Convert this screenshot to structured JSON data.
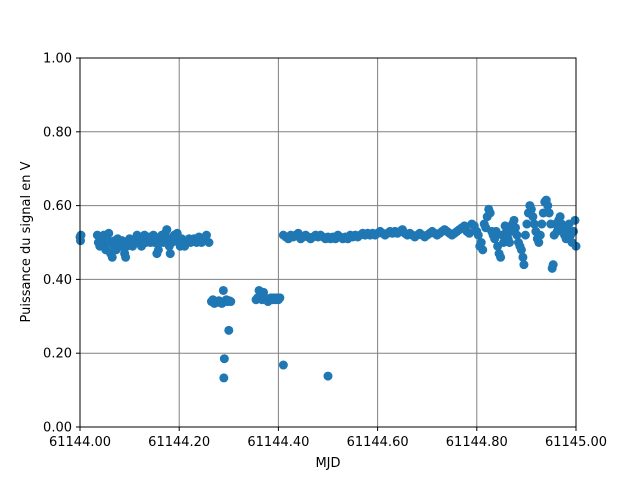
{
  "chart_data": {
    "type": "scatter",
    "title": "",
    "xlabel": "MJD",
    "ylabel": "Puissance du signal en V",
    "xlim": [
      61144.0,
      61145.0
    ],
    "ylim": [
      0.0,
      1.0
    ],
    "grid": true,
    "legend": "none",
    "x_ticks": [
      61144.0,
      61144.2,
      61144.4,
      61144.6,
      61144.8,
      61145.0
    ],
    "x_tick_labels": [
      "61144.00",
      "61144.20",
      "61144.40",
      "61144.60",
      "61144.80",
      "61145.00"
    ],
    "y_ticks": [
      0.0,
      0.2,
      0.4,
      0.6,
      0.8,
      1.0
    ],
    "y_tick_labels": [
      "0.00",
      "0.20",
      "0.40",
      "0.60",
      "0.80",
      "1.00"
    ],
    "colors": {
      "marker": "#1f77b4",
      "grid": "#808080",
      "axis": "#000000"
    },
    "series": [
      {
        "name": "",
        "points": [
          [
            61144.0,
            0.515
          ],
          [
            61144.001,
            0.505
          ],
          [
            61144.002,
            0.52
          ],
          [
            61144.035,
            0.52
          ],
          [
            61144.037,
            0.5
          ],
          [
            61144.04,
            0.49
          ],
          [
            61144.042,
            0.51
          ],
          [
            61144.045,
            0.5
          ],
          [
            61144.048,
            0.52
          ],
          [
            61144.05,
            0.495
          ],
          [
            61144.052,
            0.48
          ],
          [
            61144.055,
            0.51
          ],
          [
            61144.058,
            0.525
          ],
          [
            61144.06,
            0.5
          ],
          [
            61144.062,
            0.47
          ],
          [
            61144.065,
            0.46
          ],
          [
            61144.068,
            0.49
          ],
          [
            61144.07,
            0.505
          ],
          [
            61144.073,
            0.48
          ],
          [
            61144.076,
            0.51
          ],
          [
            61144.079,
            0.5
          ],
          [
            61144.082,
            0.49
          ],
          [
            61144.085,
            0.505
          ],
          [
            61144.088,
            0.5
          ],
          [
            61144.09,
            0.47
          ],
          [
            61144.092,
            0.46
          ],
          [
            61144.095,
            0.49
          ],
          [
            61144.098,
            0.5
          ],
          [
            61144.1,
            0.51
          ],
          [
            61144.103,
            0.495
          ],
          [
            61144.106,
            0.49
          ],
          [
            61144.109,
            0.505
          ],
          [
            61144.112,
            0.51
          ],
          [
            61144.115,
            0.52
          ],
          [
            61144.118,
            0.5
          ],
          [
            61144.121,
            0.515
          ],
          [
            61144.124,
            0.49
          ],
          [
            61144.127,
            0.51
          ],
          [
            61144.13,
            0.52
          ],
          [
            61144.133,
            0.5
          ],
          [
            61144.136,
            0.51
          ],
          [
            61144.139,
            0.515
          ],
          [
            61144.142,
            0.5
          ],
          [
            61144.145,
            0.505
          ],
          [
            61144.148,
            0.52
          ],
          [
            61144.15,
            0.5
          ],
          [
            61144.152,
            0.51
          ],
          [
            61144.155,
            0.47
          ],
          [
            61144.158,
            0.48
          ],
          [
            61144.16,
            0.5
          ],
          [
            61144.162,
            0.515
          ],
          [
            61144.165,
            0.52
          ],
          [
            61144.168,
            0.5
          ],
          [
            61144.17,
            0.51
          ],
          [
            61144.172,
            0.525
          ],
          [
            61144.175,
            0.535
          ],
          [
            61144.178,
            0.51
          ],
          [
            61144.18,
            0.49
          ],
          [
            61144.182,
            0.47
          ],
          [
            61144.185,
            0.5
          ],
          [
            61144.188,
            0.51
          ],
          [
            61144.19,
            0.52
          ],
          [
            61144.193,
            0.515
          ],
          [
            61144.196,
            0.525
          ],
          [
            61144.199,
            0.5
          ],
          [
            61144.202,
            0.49
          ],
          [
            61144.205,
            0.51
          ],
          [
            61144.208,
            0.5
          ],
          [
            61144.211,
            0.49
          ],
          [
            61144.214,
            0.5
          ],
          [
            61144.217,
            0.505
          ],
          [
            61144.22,
            0.51
          ],
          [
            61144.223,
            0.5
          ],
          [
            61144.226,
            0.505
          ],
          [
            61144.23,
            0.51
          ],
          [
            61144.235,
            0.5
          ],
          [
            61144.24,
            0.515
          ],
          [
            61144.245,
            0.5
          ],
          [
            61144.25,
            0.51
          ],
          [
            61144.255,
            0.52
          ],
          [
            61144.26,
            0.5
          ],
          [
            61144.265,
            0.34
          ],
          [
            61144.268,
            0.345
          ],
          [
            61144.271,
            0.335
          ],
          [
            61144.274,
            0.34
          ],
          [
            61144.277,
            0.338
          ],
          [
            61144.28,
            0.342
          ],
          [
            61144.283,
            0.34
          ],
          [
            61144.286,
            0.335
          ],
          [
            61144.289,
            0.37
          ],
          [
            61144.292,
            0.34
          ],
          [
            61144.295,
            0.345
          ],
          [
            61144.298,
            0.34
          ],
          [
            61144.301,
            0.342
          ],
          [
            61144.304,
            0.34
          ],
          [
            61144.291,
            0.185
          ],
          [
            61144.29,
            0.133
          ],
          [
            61144.3,
            0.262
          ],
          [
            61144.355,
            0.345
          ],
          [
            61144.358,
            0.35
          ],
          [
            61144.361,
            0.37
          ],
          [
            61144.364,
            0.36
          ],
          [
            61144.367,
            0.345
          ],
          [
            61144.37,
            0.365
          ],
          [
            61144.373,
            0.35
          ],
          [
            61144.376,
            0.345
          ],
          [
            61144.379,
            0.34
          ],
          [
            61144.382,
            0.345
          ],
          [
            61144.385,
            0.35
          ],
          [
            61144.388,
            0.345
          ],
          [
            61144.391,
            0.35
          ],
          [
            61144.394,
            0.345
          ],
          [
            61144.397,
            0.35
          ],
          [
            61144.4,
            0.345
          ],
          [
            61144.403,
            0.35
          ],
          [
            61144.41,
            0.168
          ],
          [
            61144.41,
            0.52
          ],
          [
            61144.415,
            0.515
          ],
          [
            61144.42,
            0.51
          ],
          [
            61144.425,
            0.52
          ],
          [
            61144.43,
            0.515
          ],
          [
            61144.435,
            0.52
          ],
          [
            61144.44,
            0.525
          ],
          [
            61144.445,
            0.51
          ],
          [
            61144.45,
            0.515
          ],
          [
            61144.455,
            0.52
          ],
          [
            61144.46,
            0.515
          ],
          [
            61144.465,
            0.51
          ],
          [
            61144.47,
            0.515
          ],
          [
            61144.475,
            0.52
          ],
          [
            61144.48,
            0.515
          ],
          [
            61144.485,
            0.52
          ],
          [
            61144.49,
            0.515
          ],
          [
            61144.495,
            0.51
          ],
          [
            61144.5,
            0.515
          ],
          [
            61144.505,
            0.51
          ],
          [
            61144.51,
            0.515
          ],
          [
            61144.515,
            0.51
          ],
          [
            61144.52,
            0.52
          ],
          [
            61144.525,
            0.515
          ],
          [
            61144.53,
            0.51
          ],
          [
            61144.535,
            0.515
          ],
          [
            61144.54,
            0.51
          ],
          [
            61144.545,
            0.52
          ],
          [
            61144.55,
            0.515
          ],
          [
            61144.555,
            0.52
          ],
          [
            61144.56,
            0.515
          ],
          [
            61144.565,
            0.52
          ],
          [
            61144.57,
            0.525
          ],
          [
            61144.575,
            0.52
          ],
          [
            61144.58,
            0.525
          ],
          [
            61144.585,
            0.52
          ],
          [
            61144.59,
            0.525
          ],
          [
            61144.595,
            0.52
          ],
          [
            61144.6,
            0.525
          ],
          [
            61144.605,
            0.53
          ],
          [
            61144.61,
            0.525
          ],
          [
            61144.615,
            0.52
          ],
          [
            61144.62,
            0.525
          ],
          [
            61144.625,
            0.53
          ],
          [
            61144.63,
            0.525
          ],
          [
            61144.635,
            0.53
          ],
          [
            61144.64,
            0.525
          ],
          [
            61144.645,
            0.53
          ],
          [
            61144.65,
            0.535
          ],
          [
            61144.655,
            0.525
          ],
          [
            61144.66,
            0.52
          ],
          [
            61144.665,
            0.525
          ],
          [
            61144.67,
            0.52
          ],
          [
            61144.675,
            0.515
          ],
          [
            61144.68,
            0.52
          ],
          [
            61144.685,
            0.525
          ],
          [
            61144.69,
            0.52
          ],
          [
            61144.695,
            0.515
          ],
          [
            61144.7,
            0.52
          ],
          [
            61144.705,
            0.525
          ],
          [
            61144.71,
            0.53
          ],
          [
            61144.715,
            0.525
          ],
          [
            61144.72,
            0.52
          ],
          [
            61144.725,
            0.525
          ],
          [
            61144.73,
            0.53
          ],
          [
            61144.735,
            0.535
          ],
          [
            61144.74,
            0.53
          ],
          [
            61144.745,
            0.525
          ],
          [
            61144.75,
            0.52
          ],
          [
            61144.755,
            0.525
          ],
          [
            61144.76,
            0.53
          ],
          [
            61144.765,
            0.535
          ],
          [
            61144.77,
            0.54
          ],
          [
            61144.775,
            0.545
          ],
          [
            61144.78,
            0.53
          ],
          [
            61144.785,
            0.525
          ],
          [
            61144.79,
            0.55
          ],
          [
            61144.795,
            0.545
          ],
          [
            61144.8,
            0.53
          ],
          [
            61144.803,
            0.52
          ],
          [
            61144.806,
            0.49
          ],
          [
            61144.809,
            0.5
          ],
          [
            61144.812,
            0.48
          ],
          [
            61144.815,
            0.55
          ],
          [
            61144.818,
            0.54
          ],
          [
            61144.821,
            0.57
          ],
          [
            61144.824,
            0.59
          ],
          [
            61144.827,
            0.58
          ],
          [
            61144.83,
            0.53
          ],
          [
            61144.833,
            0.52
          ],
          [
            61144.836,
            0.51
          ],
          [
            61144.839,
            0.53
          ],
          [
            61144.842,
            0.49
          ],
          [
            61144.845,
            0.47
          ],
          [
            61144.848,
            0.46
          ],
          [
            61144.851,
            0.52
          ],
          [
            61144.854,
            0.5
          ],
          [
            61144.857,
            0.545
          ],
          [
            61144.86,
            0.53
          ],
          [
            61144.863,
            0.51
          ],
          [
            61144.866,
            0.5
          ],
          [
            61144.869,
            0.53
          ],
          [
            61144.872,
            0.55
          ],
          [
            61144.875,
            0.56
          ],
          [
            61144.878,
            0.54
          ],
          [
            61144.881,
            0.52
          ],
          [
            61144.884,
            0.5
          ],
          [
            61144.887,
            0.49
          ],
          [
            61144.89,
            0.48
          ],
          [
            61144.893,
            0.46
          ],
          [
            61144.895,
            0.44
          ],
          [
            61144.898,
            0.52
          ],
          [
            61144.901,
            0.55
          ],
          [
            61144.904,
            0.58
          ],
          [
            61144.907,
            0.6
          ],
          [
            61144.91,
            0.59
          ],
          [
            61144.913,
            0.57
          ],
          [
            61144.916,
            0.55
          ],
          [
            61144.919,
            0.53
          ],
          [
            61144.922,
            0.51
          ],
          [
            61144.925,
            0.5
          ],
          [
            61144.928,
            0.52
          ],
          [
            61144.931,
            0.55
          ],
          [
            61144.934,
            0.58
          ],
          [
            61144.937,
            0.61
          ],
          [
            61144.94,
            0.615
          ],
          [
            61144.943,
            0.6
          ],
          [
            61144.946,
            0.58
          ],
          [
            61144.949,
            0.55
          ],
          [
            61144.952,
            0.43
          ],
          [
            61144.954,
            0.44
          ],
          [
            61144.956,
            0.52
          ],
          [
            61144.959,
            0.55
          ],
          [
            61144.962,
            0.53
          ],
          [
            61144.965,
            0.56
          ],
          [
            61144.968,
            0.57
          ],
          [
            61144.971,
            0.55
          ],
          [
            61144.974,
            0.54
          ],
          [
            61144.977,
            0.52
          ],
          [
            61144.98,
            0.51
          ],
          [
            61144.983,
            0.53
          ],
          [
            61144.986,
            0.55
          ],
          [
            61144.989,
            0.52
          ],
          [
            61144.992,
            0.5
          ],
          [
            61144.995,
            0.53
          ],
          [
            61144.998,
            0.56
          ],
          [
            61145.0,
            0.49
          ],
          [
            61144.5,
            0.138
          ]
        ]
      }
    ]
  }
}
